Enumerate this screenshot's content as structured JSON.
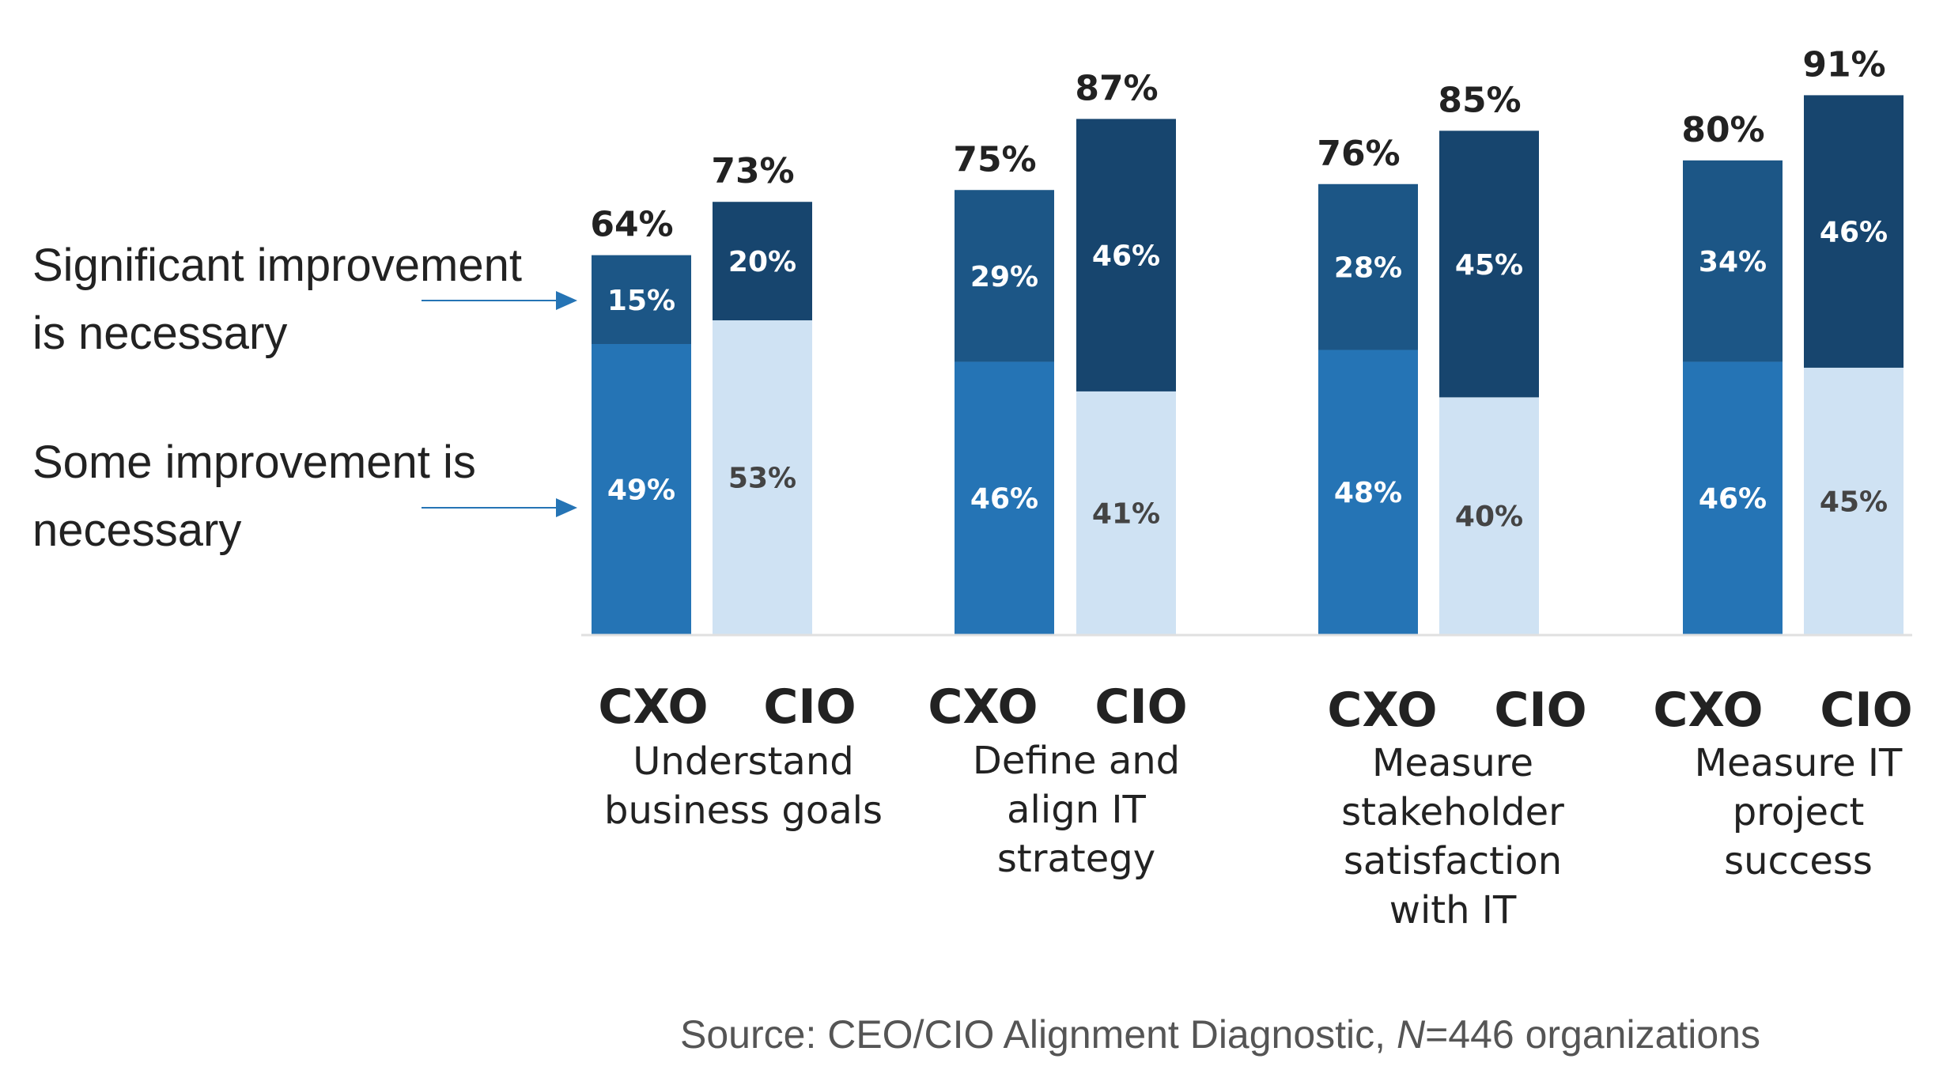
{
  "chart_data": {
    "type": "bar",
    "stacked": true,
    "categories": [
      {
        "lines": [
          "Understand",
          "business goals"
        ]
      },
      {
        "lines": [
          "Define and",
          "align IT",
          "strategy"
        ]
      },
      {
        "lines": [
          "Measure",
          "stakeholder",
          "satisfaction",
          "with IT"
        ]
      },
      {
        "lines": [
          "Measure IT",
          "project",
          "success"
        ]
      }
    ],
    "respondent_groups": [
      "CXO",
      "CIO"
    ],
    "series": [
      {
        "name": "Some improvement is necessary",
        "CXO": [
          49,
          46,
          48,
          46
        ],
        "CIO": [
          53,
          41,
          40,
          45
        ]
      },
      {
        "name": "Significant improvement is necessary",
        "CXO": [
          15,
          29,
          28,
          34
        ],
        "CIO": [
          20,
          46,
          45,
          46
        ]
      }
    ],
    "totals": {
      "CXO": [
        64,
        75,
        76,
        80
      ],
      "CIO": [
        73,
        87,
        85,
        91
      ]
    },
    "value_suffix": "%",
    "annotations": [
      {
        "lines": [
          "Significant improvement",
          "is necessary"
        ]
      },
      {
        "lines": [
          "Some improvement is",
          "necessary"
        ]
      }
    ],
    "source": {
      "prefix": "Source: CEO/CIO Alignment Diagnostic, ",
      "italic": "N",
      "suffix": "=446 organizations"
    },
    "ylim": [
      0,
      100
    ],
    "grid": false,
    "colors": {
      "cxo_significant": "#1c5686",
      "cxo_some": "#2574b5",
      "cio_significant": "#17456e",
      "cio_some": "#cfe2f3",
      "label_light": "#ffffff",
      "label_dark": "#444444",
      "arrow": "#2574b5",
      "axis": "#e0e0e0"
    }
  }
}
